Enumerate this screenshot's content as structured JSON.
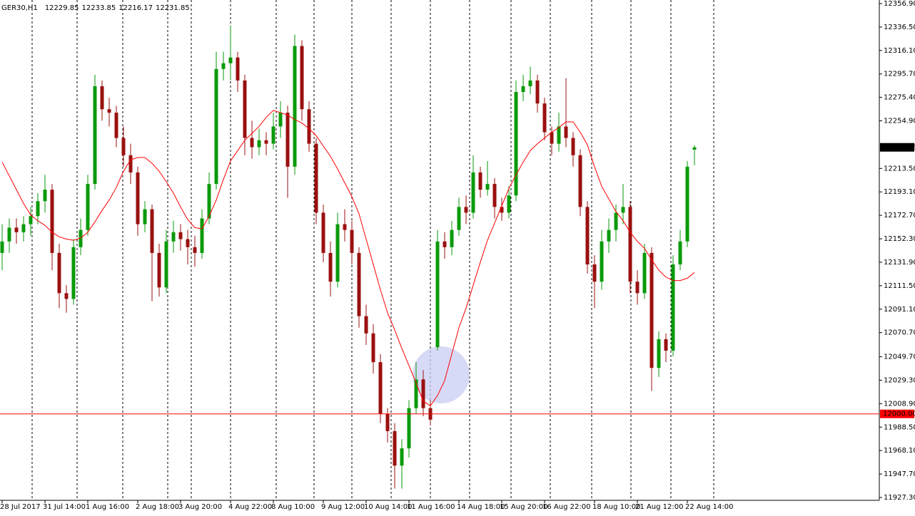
{
  "chart_data": {
    "type": "candlestick",
    "title": "GER30,H1",
    "up_color": "#0a9a0a",
    "down_color": "#9a1010",
    "ma_color": "#ff0000",
    "ylim": [
      11927.3,
      12356.9
    ],
    "yticks": [
      {
        "value": 12356.9,
        "label": "12356.90"
      },
      {
        "value": 12336.5,
        "label": "12336.50"
      },
      {
        "value": 12316.1,
        "label": "12316.10"
      },
      {
        "value": 12295.7,
        "label": "12295.70"
      },
      {
        "value": 12275.4,
        "label": "12275.40"
      },
      {
        "value": 12254.9,
        "label": "12254.90"
      },
      {
        "value": 12213.5,
        "label": "12213.50"
      },
      {
        "value": 12193.1,
        "label": "12193.10"
      },
      {
        "value": 12172.7,
        "label": "12172.70"
      },
      {
        "value": 12152.3,
        "label": "12152.30"
      },
      {
        "value": 12131.9,
        "label": "12131.90"
      },
      {
        "value": 12111.5,
        "label": "12111.50"
      },
      {
        "value": 12091.1,
        "label": "12091.10"
      },
      {
        "value": 12070.7,
        "label": "12070.70"
      },
      {
        "value": 12049.7,
        "label": "12049.70"
      },
      {
        "value": 12029.3,
        "label": "12029.30"
      },
      {
        "value": 12008.9,
        "label": "12008.90"
      },
      {
        "value": 11988.5,
        "label": "11988.50"
      },
      {
        "value": 11968.1,
        "label": "11968.10"
      },
      {
        "value": 11947.7,
        "label": "11947.70"
      },
      {
        "value": 11927.3,
        "label": "11927.30"
      }
    ],
    "xticks": [
      {
        "value": 0,
        "label": "28 Jul 2017"
      },
      {
        "value": 6,
        "label": "31 Jul 14:00"
      },
      {
        "value": 12,
        "label": "1 Aug 16:00"
      },
      {
        "value": 19,
        "label": "2 Aug 18:00"
      },
      {
        "value": 25,
        "label": "3 Aug 20:00"
      },
      {
        "value": 32,
        "label": "4 Aug 22:00"
      },
      {
        "value": 38,
        "label": "8 Aug 10:00"
      },
      {
        "value": 45,
        "label": "9 Aug 12:00"
      },
      {
        "value": 51,
        "label": "10 Aug 14:00"
      },
      {
        "value": 57,
        "label": "11 Aug 16:00"
      },
      {
        "value": 64,
        "label": "14 Aug 18:00"
      },
      {
        "value": 70,
        "label": "15 Aug 20:00"
      },
      {
        "value": 76,
        "label": "16 Aug 22:00"
      },
      {
        "value": 83,
        "label": "18 Aug 10:00"
      },
      {
        "value": 89,
        "label": "21 Aug 12:00"
      },
      {
        "value": 96,
        "label": "22 Aug 14:00"
      }
    ],
    "hlines": [
      {
        "value": 12000,
        "label": "12000.00",
        "color": "#ff0000"
      }
    ],
    "candles": [
      [
        12140,
        12165,
        12125,
        12150
      ],
      [
        12150,
        12170,
        12140,
        12162
      ],
      [
        12162,
        12170,
        12148,
        12158
      ],
      [
        12158,
        12172,
        12150,
        12165
      ],
      [
        12165,
        12180,
        12155,
        12172
      ],
      [
        12172,
        12192,
        12165,
        12185
      ],
      [
        12185,
        12208,
        12175,
        12195
      ],
      [
        12195,
        12200,
        12125,
        12140
      ],
      [
        12140,
        12148,
        12092,
        12105
      ],
      [
        12105,
        12112,
        12088,
        12100
      ],
      [
        12100,
        12152,
        12095,
        12145
      ],
      [
        12145,
        12170,
        12138,
        12160
      ],
      [
        12160,
        12208,
        12155,
        12200
      ],
      [
        12200,
        12295,
        12195,
        12285
      ],
      [
        12285,
        12290,
        12255,
        12265
      ],
      [
        12265,
        12275,
        12250,
        12262
      ],
      [
        12262,
        12268,
        12232,
        12240
      ],
      [
        12240,
        12250,
        12215,
        12225
      ],
      [
        12225,
        12235,
        12200,
        12210
      ],
      [
        12210,
        12215,
        12155,
        12165
      ],
      [
        12165,
        12185,
        12158,
        12178
      ],
      [
        12178,
        12182,
        12098,
        12140
      ],
      [
        12140,
        12148,
        12102,
        12110
      ],
      [
        12110,
        12160,
        12105,
        12150
      ],
      [
        12150,
        12168,
        12140,
        12158
      ],
      [
        12158,
        12165,
        12142,
        12152
      ],
      [
        12152,
        12160,
        12130,
        12145
      ],
      [
        12145,
        12155,
        12128,
        12140
      ],
      [
        12140,
        12178,
        12135,
        12170
      ],
      [
        12170,
        12210,
        12165,
        12200
      ],
      [
        12200,
        12315,
        12195,
        12300
      ],
      [
        12300,
        12315,
        12290,
        12305
      ],
      [
        12305,
        12338,
        12290,
        12310
      ],
      [
        12310,
        12315,
        12280,
        12290
      ],
      [
        12290,
        12295,
        12225,
        12240
      ],
      [
        12240,
        12255,
        12222,
        12232
      ],
      [
        12232,
        12248,
        12225,
        12238
      ],
      [
        12238,
        12245,
        12225,
        12235
      ],
      [
        12235,
        12262,
        12230,
        12250
      ],
      [
        12250,
        12272,
        12240,
        12262
      ],
      [
        12262,
        12268,
        12188,
        12215
      ],
      [
        12215,
        12330,
        12208,
        12320
      ],
      [
        12320,
        12325,
        12255,
        12265
      ],
      [
        12265,
        12272,
        12228,
        12235
      ],
      [
        12235,
        12240,
        12165,
        12175
      ],
      [
        12175,
        12182,
        12132,
        12140
      ],
      [
        12140,
        12150,
        12102,
        12115
      ],
      [
        12115,
        12175,
        12110,
        12165
      ],
      [
        12165,
        12178,
        12150,
        12160
      ],
      [
        12160,
        12168,
        12130,
        12140
      ],
      [
        12140,
        12145,
        12075,
        12085
      ],
      [
        12085,
        12095,
        12060,
        12070
      ],
      [
        12070,
        12078,
        12035,
        12045
      ],
      [
        12045,
        12052,
        11992,
        12000
      ],
      [
        12000,
        12005,
        11975,
        11985
      ],
      [
        11985,
        11992,
        11935,
        11955
      ],
      [
        11955,
        11978,
        11935,
        11970
      ],
      [
        11970,
        12012,
        11962,
        12005
      ],
      [
        12005,
        12045,
        12000,
        12030
      ],
      [
        12030,
        12038,
        11998,
        12005
      ],
      [
        12005,
        12012,
        11990,
        11995
      ],
      [
        12058,
        12160,
        12055,
        12150
      ],
      [
        12150,
        12158,
        12135,
        12145
      ],
      [
        12145,
        12168,
        12138,
        12160
      ],
      [
        12160,
        12188,
        12155,
        12180
      ],
      [
        12180,
        12190,
        12165,
        12175
      ],
      [
        12175,
        12225,
        12170,
        12210
      ],
      [
        12210,
        12215,
        12188,
        12195
      ],
      [
        12195,
        12220,
        12190,
        12200
      ],
      [
        12200,
        12205,
        12170,
        12180
      ],
      [
        12180,
        12188,
        12168,
        12175
      ],
      [
        12175,
        12198,
        12170,
        12190
      ],
      [
        12190,
        12290,
        12185,
        12280
      ],
      [
        12280,
        12295,
        12272,
        12285
      ],
      [
        12285,
        12302,
        12278,
        12290
      ],
      [
        12290,
        12295,
        12262,
        12270
      ],
      [
        12270,
        12275,
        12238,
        12245
      ],
      [
        12245,
        12250,
        12225,
        12235
      ],
      [
        12235,
        12262,
        12228,
        12250
      ],
      [
        12250,
        12292,
        12232,
        12240
      ],
      [
        12240,
        12245,
        12215,
        12225
      ],
      [
        12225,
        12230,
        12172,
        12180
      ],
      [
        12180,
        12185,
        12122,
        12130
      ],
      [
        12130,
        12138,
        12092,
        12115
      ],
      [
        12115,
        12160,
        12108,
        12150
      ],
      [
        12150,
        12170,
        12140,
        12160
      ],
      [
        12160,
        12182,
        12150,
        12175
      ],
      [
        12175,
        12200,
        12165,
        12180
      ],
      [
        12180,
        12185,
        12105,
        12115
      ],
      [
        12115,
        12125,
        12095,
        12105
      ],
      [
        12105,
        12148,
        12100,
        12140
      ],
      [
        12140,
        12145,
        12020,
        12040
      ],
      [
        12040,
        12072,
        12032,
        12065
      ],
      [
        12065,
        12070,
        12045,
        12055
      ],
      [
        12055,
        12138,
        12050,
        12130
      ],
      [
        12130,
        12160,
        12125,
        12150
      ],
      [
        12150,
        12220,
        12145,
        12215
      ],
      [
        12229.85,
        12233.85,
        12216.17,
        12231.85
      ]
    ],
    "ma": [
      12219,
      12207,
      12195,
      12183,
      12173,
      12168,
      12164,
      12158,
      12154,
      12152,
      12151,
      12153,
      12158,
      12167,
      12177,
      12186,
      12197,
      12211,
      12221,
      12223,
      12223,
      12218,
      12211,
      12202,
      12192,
      12180,
      12169,
      12162,
      12161,
      12172,
      12186,
      12204,
      12220,
      12229,
      12238,
      12244,
      12250,
      12258,
      12264,
      12262,
      12260,
      12256,
      12253,
      12248,
      12242,
      12233,
      12224,
      12213,
      12201,
      12189,
      12174,
      12152,
      12130,
      12108,
      12088,
      12073,
      12057,
      12042,
      12027,
      12011,
      12007,
      12016,
      12029,
      12052,
      12075,
      12092,
      12112,
      12132,
      12151,
      12166,
      12181,
      12196,
      12208,
      12219,
      12229,
      12235,
      12240,
      12245,
      12249,
      12254,
      12254,
      12245,
      12234,
      12215,
      12198,
      12187,
      12176,
      12168,
      12158,
      12150,
      12144,
      12134,
      12125,
      12119,
      12116,
      12116,
      12118,
      12123
    ]
  }
}
